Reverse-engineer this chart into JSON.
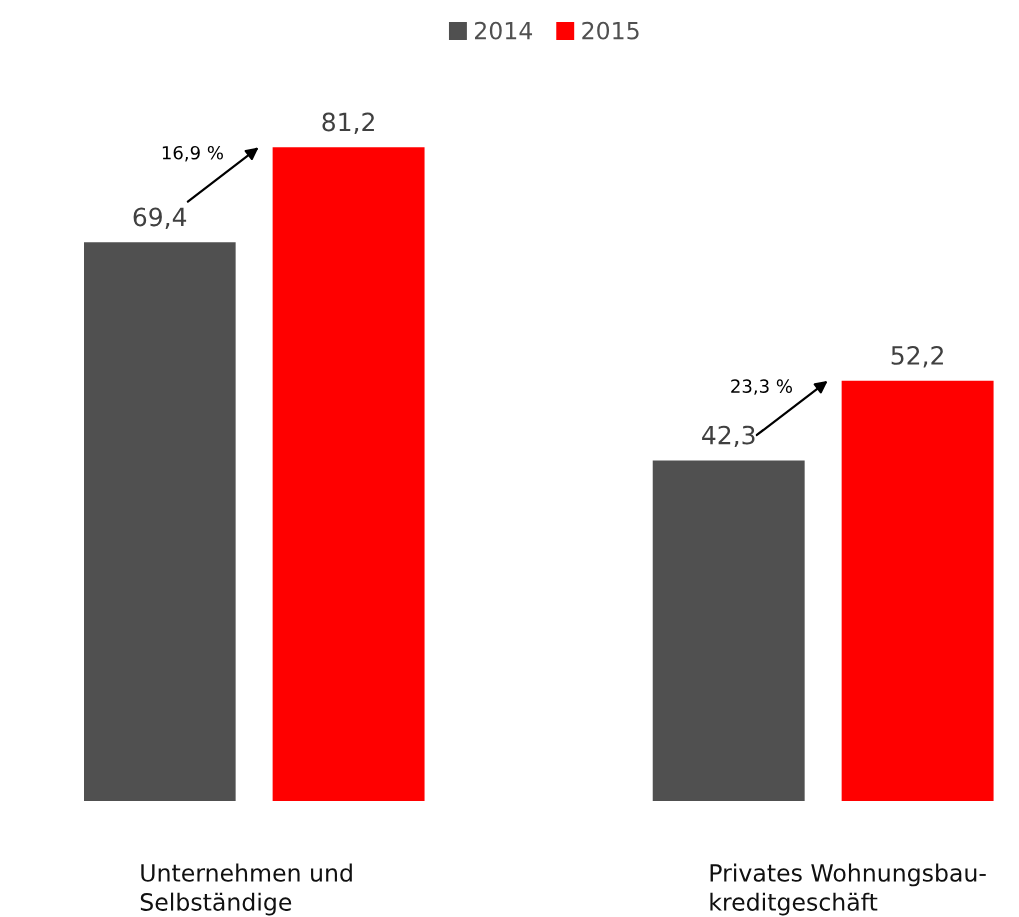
{
  "chart_data": {
    "type": "bar",
    "categories": [
      "Unternehmen und\nSelbständige",
      "Privates Wohnungsbau-\nkreditgeschäft"
    ],
    "series": [
      {
        "name": "2014",
        "color": "#505050",
        "values": [
          69.4,
          42.3
        ],
        "value_labels": [
          "69,4",
          "42,3"
        ]
      },
      {
        "name": "2015",
        "color": "#ff0000",
        "values": [
          81.2,
          52.2
        ],
        "value_labels": [
          "81,2",
          "52,2"
        ]
      }
    ],
    "annotations": [
      "16,9 %",
      "23,3 %"
    ],
    "legend": "top"
  }
}
